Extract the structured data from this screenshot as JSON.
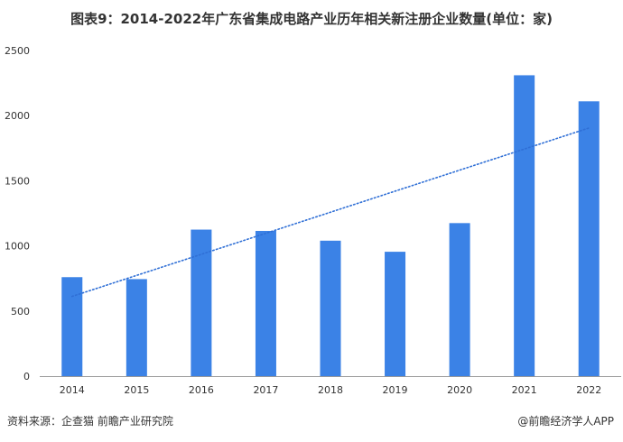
{
  "header": {
    "title": "图表9：2014-2022年广东省集成电路产业历年相关新注册企业数量(单位：家)"
  },
  "footer": {
    "source": "资料来源：企查猫 前瞻产业研究院",
    "brand": "@前瞻经济学人APP"
  },
  "colors": {
    "bar": "#3b82e6",
    "trendline": "#2f6fd6",
    "axis": "#999999"
  },
  "chart_data": {
    "type": "bar",
    "title": "图表9：2014-2022年广东省集成电路产业历年相关新注册企业数量(单位：家)",
    "categories": [
      "2014",
      "2015",
      "2016",
      "2017",
      "2018",
      "2019",
      "2020",
      "2021",
      "2022"
    ],
    "values": [
      760,
      745,
      1125,
      1115,
      1040,
      955,
      1175,
      2310,
      2110
    ],
    "ylim": [
      0,
      2500
    ],
    "yticks": [
      0,
      500,
      1000,
      1500,
      2000,
      2500
    ],
    "trendline": {
      "style": "dotted-linear",
      "start": 612,
      "end": 1905
    },
    "grid": false,
    "legend": "none"
  }
}
